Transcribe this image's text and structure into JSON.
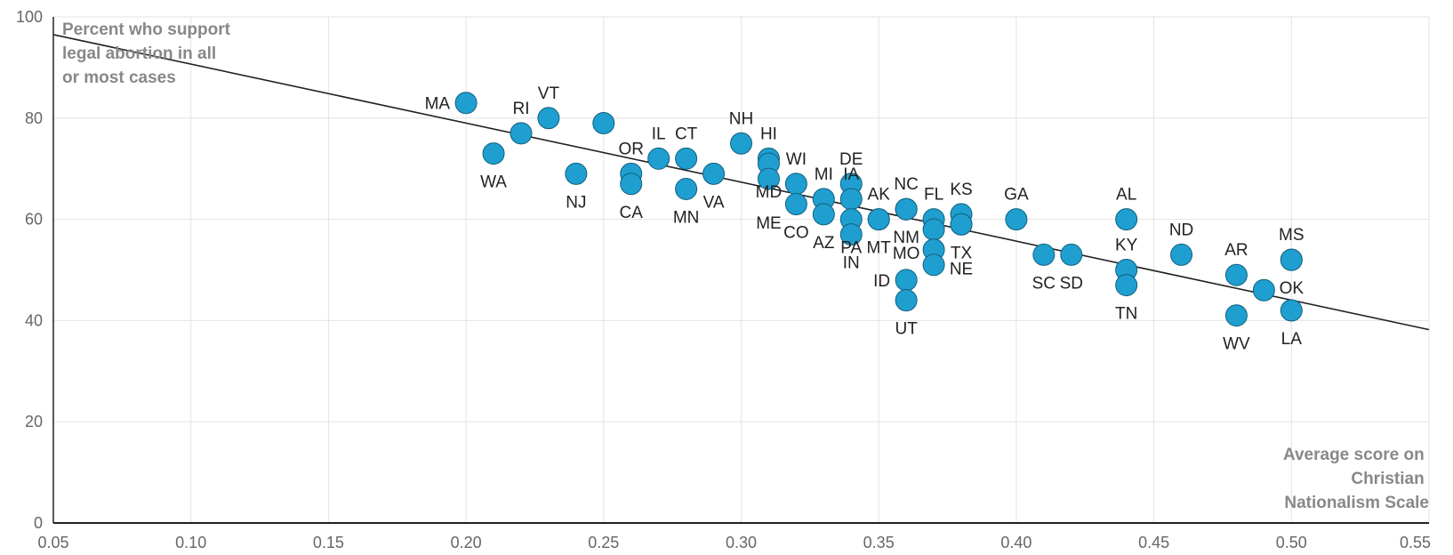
{
  "chart_data": {
    "type": "scatter",
    "title": "",
    "ylabel_lines": [
      "Percent who support",
      "legal abortion in all",
      "or most cases"
    ],
    "xlabel_lines": [
      "Average score on",
      "Christian",
      "Nationalism Scale"
    ],
    "xlim": [
      0.05,
      0.55
    ],
    "ylim": [
      0,
      100
    ],
    "x_ticks": [
      0.05,
      0.1,
      0.15,
      0.2,
      0.25,
      0.3,
      0.35,
      0.4,
      0.45,
      0.5,
      0.55
    ],
    "x_tick_labels": [
      "0.05",
      "0.10",
      "0.15",
      "0.20",
      "0.25",
      "0.30",
      "0.35",
      "0.40",
      "0.45",
      "0.50",
      "0.55"
    ],
    "y_ticks": [
      0,
      20,
      40,
      60,
      80,
      100
    ],
    "y_tick_labels": [
      "0",
      "20",
      "40",
      "60",
      "80",
      "100"
    ],
    "grid": true,
    "point_color": "#1f9fd0",
    "point_stroke": "#11607e",
    "trendline": {
      "x": [
        0.05,
        0.55
      ],
      "y": [
        96.5,
        38.2
      ],
      "color": "#222222"
    },
    "points": [
      {
        "label": "MA",
        "x": 0.2,
        "y": 83,
        "label_pos": "left"
      },
      {
        "label": "WA",
        "x": 0.21,
        "y": 73,
        "label_pos": "below"
      },
      {
        "label": "RI",
        "x": 0.22,
        "y": 77,
        "label_pos": "above"
      },
      {
        "label": "VT",
        "x": 0.23,
        "y": 80,
        "label_pos": "above-right"
      },
      {
        "label": "NJ",
        "x": 0.24,
        "y": 69,
        "label_pos": "below"
      },
      {
        "label": "",
        "x": 0.25,
        "y": 79,
        "label_pos": "none"
      },
      {
        "label": "OR",
        "x": 0.26,
        "y": 69,
        "label_pos": "above"
      },
      {
        "label": "CA",
        "x": 0.26,
        "y": 67,
        "label_pos": "below"
      },
      {
        "label": "IL",
        "x": 0.27,
        "y": 72,
        "label_pos": "above"
      },
      {
        "label": "CT",
        "x": 0.28,
        "y": 72,
        "label_pos": "above"
      },
      {
        "label": "MN",
        "x": 0.28,
        "y": 66,
        "label_pos": "below"
      },
      {
        "label": "VA",
        "x": 0.29,
        "y": 69,
        "label_pos": "below"
      },
      {
        "label": "NH",
        "x": 0.3,
        "y": 75,
        "label_pos": "above"
      },
      {
        "label": "HI",
        "x": 0.31,
        "y": 72,
        "label_pos": "above"
      },
      {
        "label": "MD",
        "x": 0.31,
        "y": 71,
        "label_pos": "below"
      },
      {
        "label": "ME",
        "x": 0.31,
        "y": 68,
        "label_pos": "below-far"
      },
      {
        "label": "WI",
        "x": 0.32,
        "y": 67,
        "label_pos": "above"
      },
      {
        "label": "CO",
        "x": 0.32,
        "y": 63,
        "label_pos": "below"
      },
      {
        "label": "MI",
        "x": 0.33,
        "y": 64,
        "label_pos": "above"
      },
      {
        "label": "AZ",
        "x": 0.33,
        "y": 61,
        "label_pos": "below"
      },
      {
        "label": "DE",
        "x": 0.34,
        "y": 67,
        "label_pos": "above"
      },
      {
        "label": "IA",
        "x": 0.34,
        "y": 64,
        "label_pos": "above"
      },
      {
        "label": "PA",
        "x": 0.34,
        "y": 60,
        "label_pos": "below"
      },
      {
        "label": "IN",
        "x": 0.34,
        "y": 57,
        "label_pos": "below"
      },
      {
        "label": "AK",
        "x": 0.35,
        "y": 60,
        "label_pos": "above"
      },
      {
        "label": "MT",
        "x": 0.35,
        "y": 60,
        "label_pos": "below"
      },
      {
        "label": "NC",
        "x": 0.36,
        "y": 62,
        "label_pos": "above"
      },
      {
        "label": "NM",
        "x": 0.36,
        "y": 62,
        "label_pos": "below"
      },
      {
        "label": "MO",
        "x": 0.36,
        "y": 62,
        "label_pos": "below-far"
      },
      {
        "label": "ID",
        "x": 0.36,
        "y": 48,
        "label_pos": "left"
      },
      {
        "label": "UT",
        "x": 0.36,
        "y": 44,
        "label_pos": "below"
      },
      {
        "label": "FL",
        "x": 0.37,
        "y": 60,
        "label_pos": "above"
      },
      {
        "label": "",
        "x": 0.37,
        "y": 58,
        "label_pos": "none"
      },
      {
        "label": "",
        "x": 0.37,
        "y": 54,
        "label_pos": "none"
      },
      {
        "label": "",
        "x": 0.37,
        "y": 51,
        "label_pos": "none"
      },
      {
        "label": "KS",
        "x": 0.38,
        "y": 61,
        "label_pos": "above"
      },
      {
        "label": "TX",
        "x": 0.38,
        "y": 59,
        "label_pos": "below"
      },
      {
        "label": "NE",
        "x": 0.38,
        "y": 59,
        "label_pos": "below-far"
      },
      {
        "label": "GA",
        "x": 0.4,
        "y": 60,
        "label_pos": "above"
      },
      {
        "label": "SC",
        "x": 0.41,
        "y": 53,
        "label_pos": "below"
      },
      {
        "label": "SD",
        "x": 0.42,
        "y": 53,
        "label_pos": "below"
      },
      {
        "label": "AL",
        "x": 0.44,
        "y": 60,
        "label_pos": "above"
      },
      {
        "label": "KY",
        "x": 0.44,
        "y": 50,
        "label_pos": "above"
      },
      {
        "label": "TN",
        "x": 0.44,
        "y": 47,
        "label_pos": "below"
      },
      {
        "label": "ND",
        "x": 0.46,
        "y": 53,
        "label_pos": "above"
      },
      {
        "label": "AR",
        "x": 0.48,
        "y": 49,
        "label_pos": "above"
      },
      {
        "label": "WV",
        "x": 0.48,
        "y": 41,
        "label_pos": "below"
      },
      {
        "label": "",
        "x": 0.49,
        "y": 46,
        "label_pos": "none"
      },
      {
        "label": "MS",
        "x": 0.5,
        "y": 52,
        "label_pos": "above"
      },
      {
        "label": "OK",
        "x": 0.5,
        "y": 52,
        "label_pos": "below"
      },
      {
        "label": "LA",
        "x": 0.5,
        "y": 42,
        "label_pos": "below"
      }
    ]
  }
}
